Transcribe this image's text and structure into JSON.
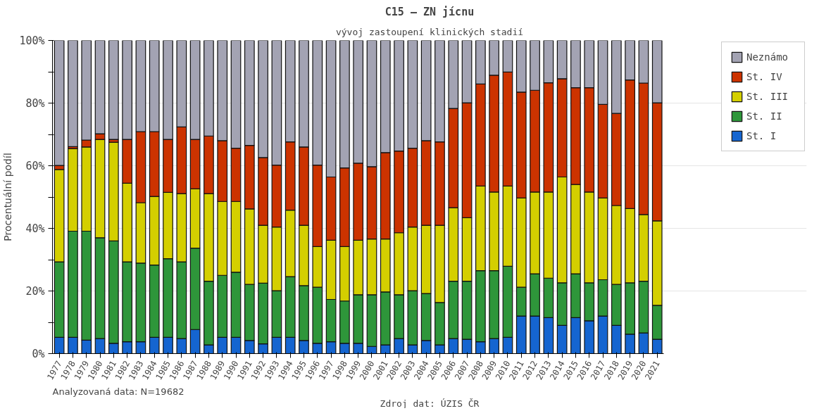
{
  "chart_data": {
    "type": "bar",
    "stacked": true,
    "title": "C15 – ZN jícnu",
    "subtitle": "vývoj zastoupení klinických stadií",
    "ylabel": "Procentuální podíl",
    "categories": [
      "1977",
      "1978",
      "1979",
      "1980",
      "1981",
      "1982",
      "1983",
      "1984",
      "1985",
      "1986",
      "1987",
      "1988",
      "1989",
      "1990",
      "1991",
      "1992",
      "1993",
      "1994",
      "1995",
      "1996",
      "1997",
      "1998",
      "1999",
      "2000",
      "2001",
      "2002",
      "2003",
      "2004",
      "2005",
      "2006",
      "2007",
      "2008",
      "2009",
      "2010",
      "2011",
      "2012",
      "2013",
      "2014",
      "2015",
      "2016",
      "2017",
      "2018",
      "2019",
      "2020",
      "2021"
    ],
    "series": [
      {
        "name": "St. I",
        "color": "#1565d0",
        "values": [
          5.2,
          5.2,
          4.3,
          4.8,
          3.3,
          3.8,
          3.8,
          5.2,
          5.2,
          4.8,
          7.7,
          2.8,
          5.2,
          5.2,
          4.2,
          3.1,
          5.2,
          5.2,
          4.2,
          3.3,
          3.8,
          3.3,
          3.3,
          2.3,
          2.8,
          4.8,
          2.8,
          4.2,
          2.8,
          4.8,
          4.6,
          3.8,
          4.8,
          5.2,
          12.0,
          12.0,
          11.5,
          9.0,
          11.5,
          10.5,
          12.0,
          9.0,
          6.2,
          6.6,
          4.6
        ]
      },
      {
        "name": "St. II",
        "color": "#2e963a",
        "values": [
          24.1,
          33.9,
          34.8,
          32.2,
          32.7,
          25.5,
          25.1,
          23.1,
          25.1,
          24.5,
          26.0,
          20.3,
          19.8,
          20.8,
          17.9,
          19.4,
          14.9,
          19.4,
          17.5,
          17.9,
          13.5,
          13.5,
          15.5,
          16.5,
          16.9,
          14.0,
          17.3,
          15.0,
          13.5,
          18.3,
          18.5,
          22.7,
          21.7,
          22.7,
          9.2,
          13.5,
          12.6,
          13.6,
          14.0,
          12.1,
          11.6,
          13.1,
          16.4,
          16.5,
          10.8
        ]
      },
      {
        "name": "St. III",
        "color": "#d4cf00",
        "values": [
          29.5,
          26.4,
          26.9,
          31.4,
          31.5,
          25.1,
          19.3,
          21.9,
          21.2,
          21.8,
          18.9,
          28.0,
          23.6,
          22.6,
          24.1,
          18.5,
          20.3,
          21.2,
          19.3,
          13.0,
          18.9,
          17.4,
          17.4,
          17.8,
          16.9,
          19.8,
          20.3,
          21.8,
          24.7,
          23.5,
          20.3,
          27.0,
          25.1,
          25.6,
          28.5,
          26.1,
          27.5,
          33.8,
          28.5,
          29.0,
          26.1,
          25.2,
          23.7,
          21.3,
          27.0
        ]
      },
      {
        "name": "St. IV",
        "color": "#cc3300",
        "values": [
          1.3,
          0.6,
          2.2,
          1.8,
          0.9,
          14.0,
          22.7,
          20.7,
          16.9,
          21.3,
          15.8,
          18.4,
          19.4,
          17.0,
          20.3,
          21.6,
          19.8,
          21.8,
          25.0,
          26.0,
          20.2,
          25.1,
          24.6,
          23.1,
          27.6,
          26.1,
          25.2,
          27.0,
          26.6,
          31.7,
          36.7,
          32.6,
          37.3,
          36.4,
          33.8,
          32.5,
          34.9,
          31.4,
          30.9,
          33.3,
          29.9,
          29.4,
          41.1,
          42.0,
          37.7
        ]
      },
      {
        "name": "Neznámo",
        "color": "#a3a3b3",
        "values": [
          39.9,
          33.9,
          31.8,
          29.8,
          31.6,
          31.6,
          29.1,
          29.1,
          31.6,
          27.6,
          31.6,
          30.5,
          32.0,
          34.4,
          33.5,
          37.4,
          39.8,
          32.4,
          34.0,
          39.8,
          43.6,
          40.7,
          39.2,
          40.3,
          35.8,
          35.3,
          34.4,
          32.0,
          32.4,
          21.7,
          19.9,
          13.9,
          11.1,
          10.1,
          16.5,
          15.9,
          13.5,
          12.2,
          15.1,
          15.1,
          20.4,
          23.3,
          12.6,
          13.6,
          19.9
        ]
      }
    ],
    "ylim": [
      0,
      100
    ],
    "yticks": [
      {
        "value": 0,
        "label": "0%"
      },
      {
        "value": 10,
        "label": null
      },
      {
        "value": 20,
        "label": "20%"
      },
      {
        "value": 30,
        "label": null
      },
      {
        "value": 40,
        "label": "40%"
      },
      {
        "value": 50,
        "label": null
      },
      {
        "value": 60,
        "label": "60%"
      },
      {
        "value": 70,
        "label": null
      },
      {
        "value": 80,
        "label": "80%"
      },
      {
        "value": 90,
        "label": null
      },
      {
        "value": 100,
        "label": "100%"
      }
    ],
    "grid": "y",
    "legend": "top right",
    "annotations": [
      "Analyzovaná data: N=19682",
      "Zdroj dat: ÚZIS ČR"
    ]
  }
}
